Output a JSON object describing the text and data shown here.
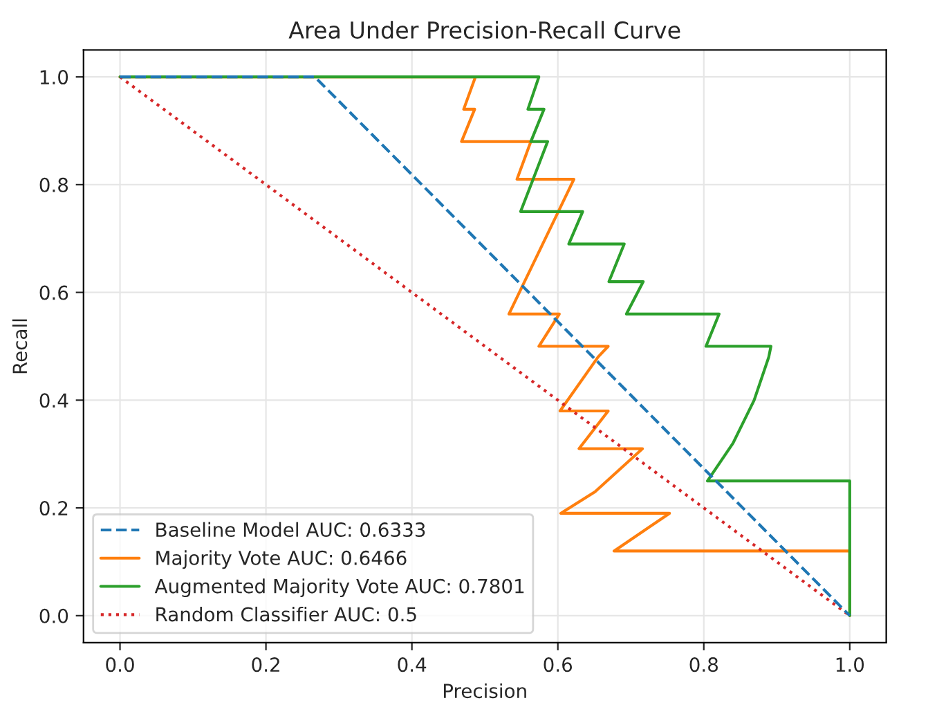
{
  "chart_data": {
    "type": "line",
    "title": "Area Under Precision-Recall Curve",
    "xlabel": "Precision",
    "ylabel": "Recall",
    "xlim": [
      -0.05,
      1.05
    ],
    "ylim": [
      -0.05,
      1.05
    ],
    "xticks": [
      {
        "value": 0,
        "label": "0.0"
      },
      {
        "value": 0.2,
        "label": "0.2"
      },
      {
        "value": 0.4,
        "label": "0.4"
      },
      {
        "value": 0.6,
        "label": "0.6"
      },
      {
        "value": 0.8,
        "label": "0.8"
      },
      {
        "value": 1,
        "label": "1.0"
      }
    ],
    "yticks": [
      {
        "value": 0,
        "label": "0.0"
      },
      {
        "value": 0.2,
        "label": "0.2"
      },
      {
        "value": 0.4,
        "label": "0.4"
      },
      {
        "value": 0.6,
        "label": "0.6"
      },
      {
        "value": 0.8,
        "label": "0.8"
      },
      {
        "value": 1,
        "label": "1.0"
      }
    ],
    "grid": true,
    "legend": "bottom left",
    "series": [
      {
        "name": "Baseline Model AUC: 0.6333",
        "color": "#1f77b4",
        "line_style": "dashed",
        "x": [
          0,
          0.267,
          1
        ],
        "values": [
          1,
          1,
          0
        ]
      },
      {
        "name": "Majority Vote AUC: 0.6466",
        "color": "#ff7f0e",
        "line_style": "solid",
        "x": [
          0,
          0.487,
          0.471,
          0.486,
          0.468,
          0.563,
          0.544,
          0.622,
          0.533,
          0.602,
          0.574,
          0.669,
          0.655,
          0.603,
          0.669,
          0.629,
          0.716,
          0.651,
          0.604,
          0.753,
          0.677,
          1,
          1
        ],
        "values": [
          1,
          1,
          0.94,
          0.94,
          0.88,
          0.88,
          0.81,
          0.81,
          0.56,
          0.56,
          0.5,
          0.5,
          0.48,
          0.38,
          0.38,
          0.31,
          0.31,
          0.23,
          0.19,
          0.19,
          0.12,
          0.12,
          0
        ]
      },
      {
        "name": "Augmented Majority Vote AUC: 0.7801",
        "color": "#2ca02c",
        "line_style": "solid",
        "x": [
          0,
          0.574,
          0.559,
          0.581,
          0.563,
          0.586,
          0.549,
          0.634,
          0.615,
          0.691,
          0.67,
          0.717,
          0.694,
          0.821,
          0.803,
          0.892,
          0.889,
          0.869,
          0.84,
          0.805,
          1,
          1
        ],
        "values": [
          1,
          1,
          0.94,
          0.94,
          0.88,
          0.88,
          0.75,
          0.75,
          0.69,
          0.69,
          0.62,
          0.62,
          0.56,
          0.56,
          0.5,
          0.5,
          0.48,
          0.4,
          0.32,
          0.25,
          0.25,
          0
        ]
      },
      {
        "name": "Random Classifier AUC: 0.5",
        "color": "#d62728",
        "line_style": "dotted",
        "x": [
          0,
          1
        ],
        "values": [
          1,
          0
        ]
      }
    ]
  }
}
